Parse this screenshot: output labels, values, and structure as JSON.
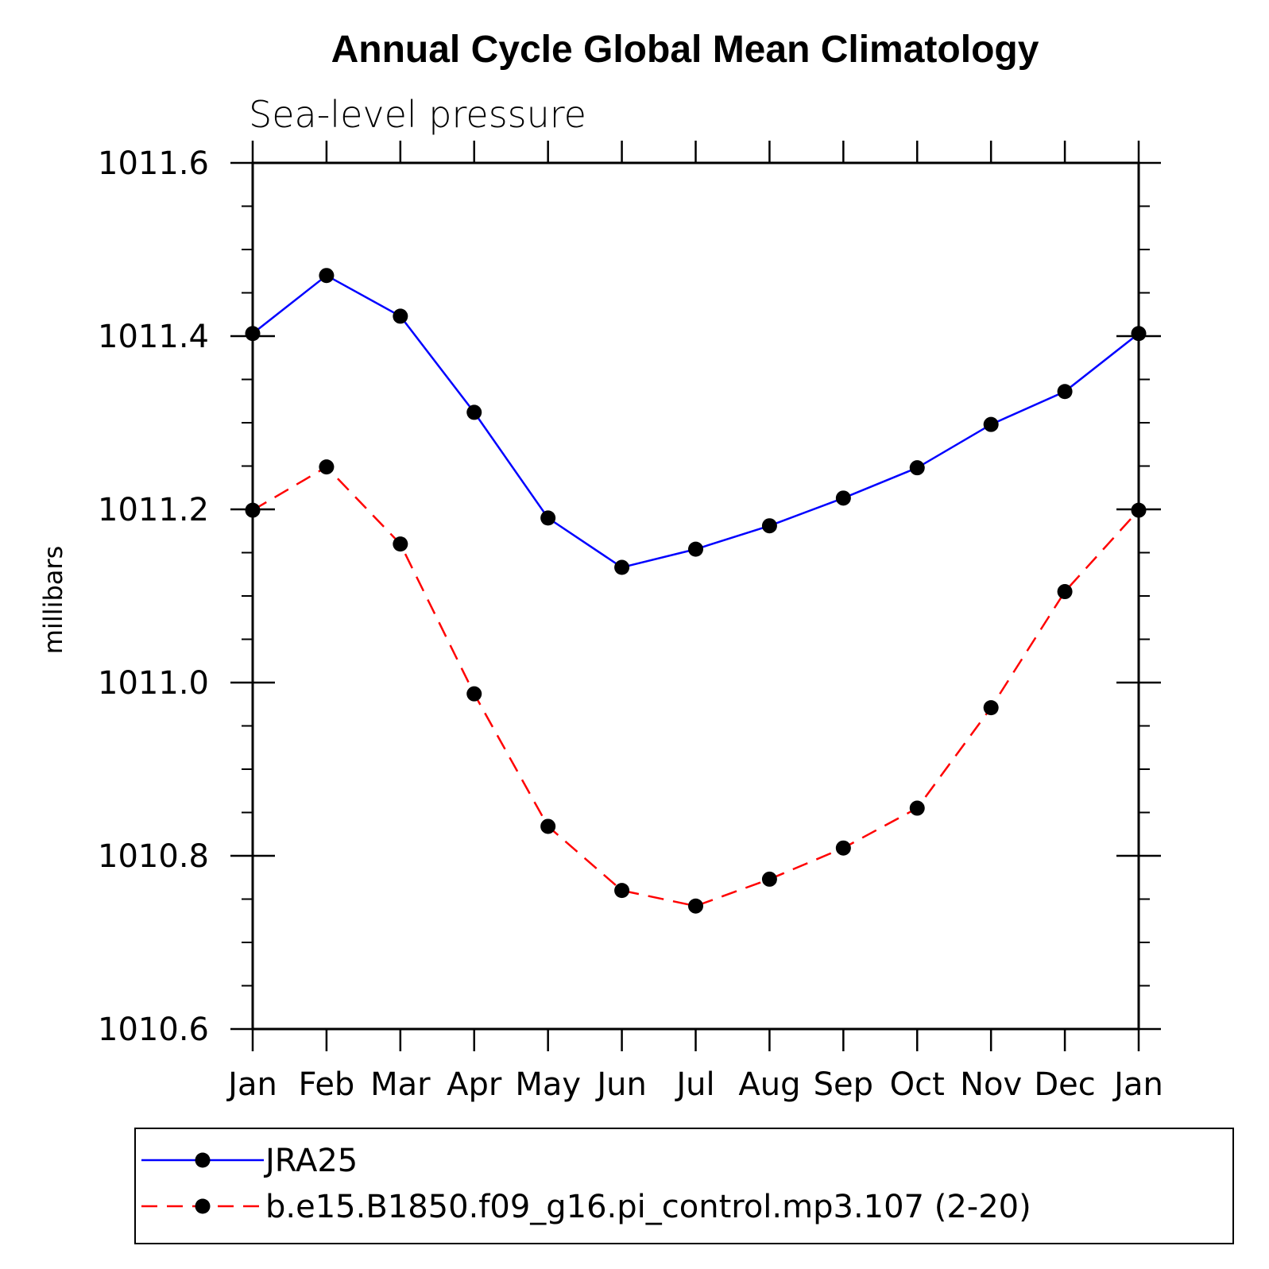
{
  "chart_data": {
    "type": "line",
    "title": "Annual Cycle Global Mean Climatology",
    "subtitle": "Sea-level pressure",
    "ylabel": "millibars",
    "xlabel": "",
    "categories": [
      "Jan",
      "Feb",
      "Mar",
      "Apr",
      "May",
      "Jun",
      "Jul",
      "Aug",
      "Sep",
      "Oct",
      "Nov",
      "Dec",
      "Jan"
    ],
    "ylim": [
      1010.6,
      1011.6
    ],
    "yticks": [
      "1010.6",
      "1010.8",
      "1011.0",
      "1011.2",
      "1011.4",
      "1011.6"
    ],
    "yminor_step": 0.05,
    "series": [
      {
        "name": "JRA25",
        "color": "#0000ff",
        "dash": "solid",
        "marker": "filled-circle",
        "values": [
          1011.403,
          1011.47,
          1011.423,
          1011.312,
          1011.19,
          1011.133,
          1011.154,
          1011.181,
          1011.213,
          1011.248,
          1011.298,
          1011.336,
          1011.403
        ]
      },
      {
        "name": "b.e15.B1850.f09_g16.pi_control.mp3.107 (2-20)",
        "color": "#ff0000",
        "dash": "dashed",
        "marker": "filled-circle",
        "values": [
          1011.199,
          1011.249,
          1011.16,
          1010.987,
          1010.834,
          1010.76,
          1010.742,
          1010.773,
          1010.809,
          1010.855,
          1010.971,
          1011.105,
          1011.199
        ]
      }
    ],
    "legend": {
      "position": "bottom",
      "entries": [
        "JRA25",
        "b.e15.B1850.f09_g16.pi_control.mp3.107 (2-20)"
      ]
    },
    "grid": false
  }
}
